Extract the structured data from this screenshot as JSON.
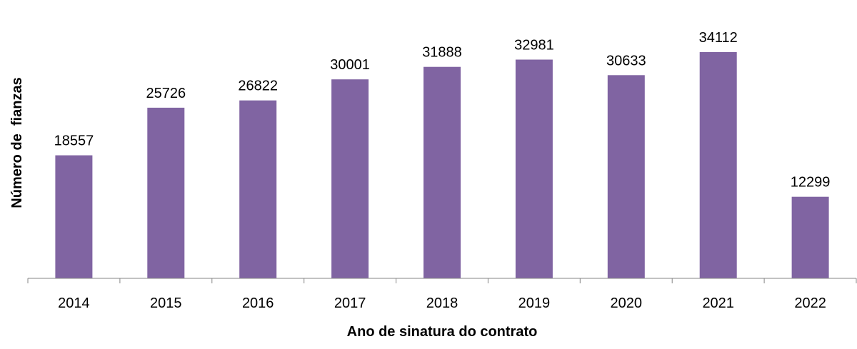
{
  "colors": {
    "bar": "#8064a2",
    "axis": "#868686",
    "text": "#000000"
  },
  "chart_data": {
    "type": "bar",
    "title": "",
    "xlabel": "Ano de sinatura do contrato",
    "ylabel": "Número de  fianzas",
    "categories": [
      "2014",
      "2015",
      "2016",
      "2017",
      "2018",
      "2019",
      "2020",
      "2021",
      "2022"
    ],
    "values": [
      18557,
      25726,
      26822,
      30001,
      31888,
      32981,
      30633,
      34112,
      12299
    ],
    "ylim": [
      0,
      35000
    ],
    "grid": false,
    "legend": "none",
    "data_labels": true
  }
}
